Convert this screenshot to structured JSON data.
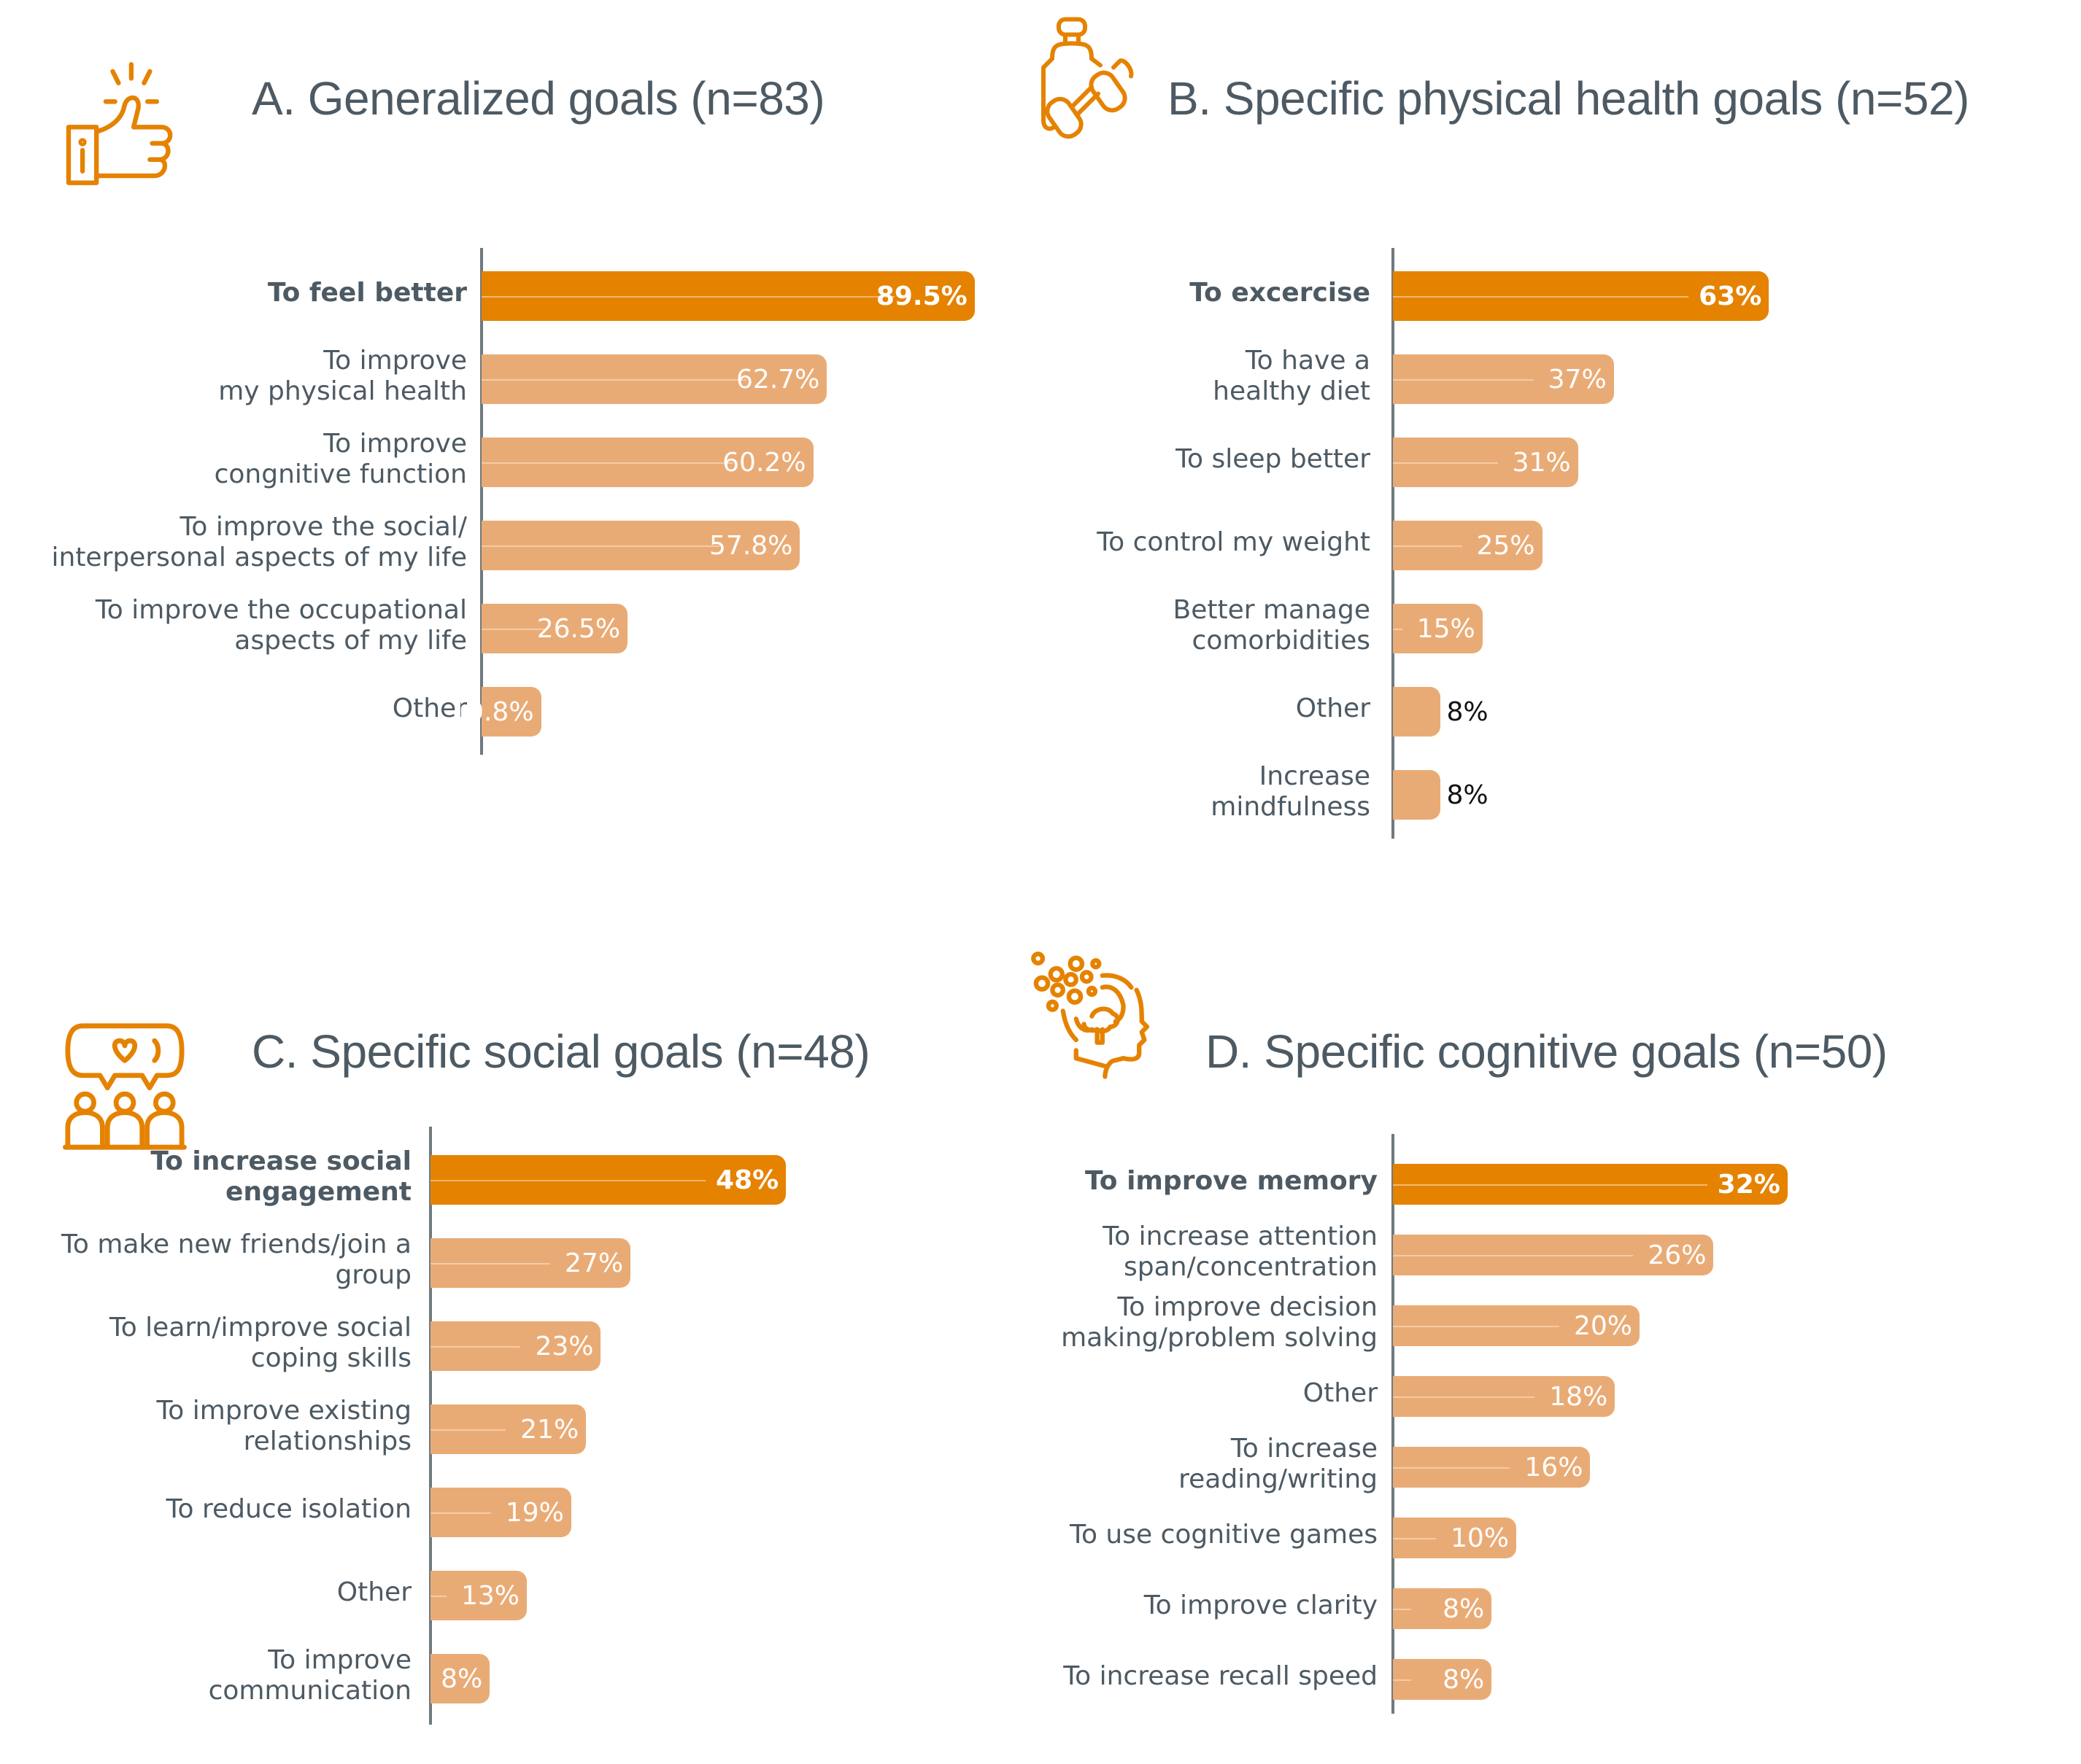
{
  "colors": {
    "accent": "#e58200",
    "bar": "#e9ab76",
    "title": "#4d5a63",
    "axis": "#6f7a7e"
  },
  "chart_data": [
    {
      "type": "bar",
      "orientation": "horizontal",
      "title": "A. Generalized goals (n=83)",
      "icon": "thumbs-up-icon",
      "categories": [
        "To feel better",
        "To improve\nmy physical health",
        "To improve\ncongnitive function",
        "To improve the social/\ninterpersonal aspects of my life",
        "To improve the occupational\naspects of my life",
        "Other"
      ],
      "values": [
        89.5,
        62.7,
        60.2,
        57.8,
        26.5,
        10.8
      ],
      "value_labels": [
        "89.5%",
        "62.7%",
        "60.2%",
        "57.8%",
        "26.5%",
        "10.8%"
      ],
      "highlight_index": 0,
      "unit": "%"
    },
    {
      "type": "bar",
      "orientation": "horizontal",
      "title": "B. Specific physical health goals (n=52)",
      "icon": "water-bottle-dumbbell-icon",
      "categories": [
        "To excercise",
        "To have a\nhealthy diet",
        "To sleep better",
        "To control my weight",
        "Better manage\ncomorbidities",
        "Other",
        "Increase\nmindfulness"
      ],
      "values": [
        63,
        37,
        31,
        25,
        15,
        8,
        8
      ],
      "value_labels": [
        "63%",
        "37%",
        "31%",
        "25%",
        "15%",
        "8%",
        "8%"
      ],
      "highlight_index": 0,
      "unit": "%"
    },
    {
      "type": "bar",
      "orientation": "horizontal",
      "title": "C. Specific social goals (n=48)",
      "icon": "social-chat-group-icon",
      "categories": [
        "To increase social\nengagement",
        "To make new friends/join a\ngroup",
        "To learn/improve social\ncoping skills",
        "To improve existing\nrelationships",
        "To reduce isolation",
        "Other",
        "To improve\ncommunication"
      ],
      "values": [
        48,
        27,
        23,
        21,
        19,
        13,
        8
      ],
      "value_labels": [
        "48%",
        "27%",
        "23%",
        "21%",
        "19%",
        "13%",
        "8%"
      ],
      "highlight_index": 0,
      "unit": "%"
    },
    {
      "type": "bar",
      "orientation": "horizontal",
      "title": "D. Specific cognitive goals (n=50)",
      "icon": "head-brain-icon",
      "categories": [
        "To improve memory",
        "To increase attention\nspan/concentration",
        "To improve decision\nmaking/problem solving",
        "Other",
        "To increase\nreading/writing",
        "To use cognitive games",
        "To improve clarity",
        "To increase recall speed"
      ],
      "values": [
        32,
        26,
        20,
        18,
        16,
        10,
        8,
        8
      ],
      "value_labels": [
        "32%",
        "26%",
        "20%",
        "18%",
        "16%",
        "10%",
        "8%",
        "8%"
      ],
      "highlight_index": 0,
      "unit": "%"
    }
  ]
}
